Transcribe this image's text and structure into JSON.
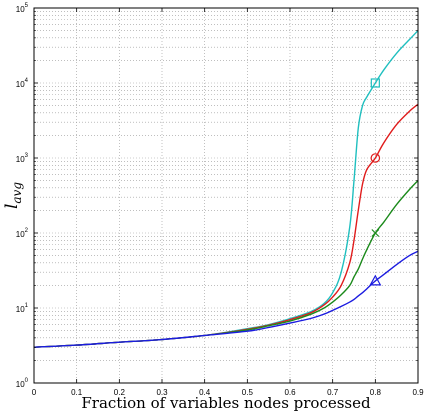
{
  "chart_data": {
    "type": "line",
    "title": "",
    "xlabel": "Fraction of variables nodes processed",
    "ylabel": "l",
    "ylabel_sub": "avg",
    "xlim": [
      0,
      0.9
    ],
    "ylim": [
      1,
      100000
    ],
    "yscale": "log",
    "grid": true,
    "xticks": [
      "0",
      "0.1",
      "0.2",
      "0.3",
      "0.4",
      "0.5",
      "0.6",
      "0.7",
      "0.8",
      "0.9"
    ],
    "ytick_base": "10",
    "ytick_exps": [
      "0",
      "1",
      "2",
      "3",
      "4",
      "5"
    ],
    "x": [
      0,
      0.1,
      0.2,
      0.3,
      0.4,
      0.5,
      0.55,
      0.6,
      0.65,
      0.68,
      0.7,
      0.72,
      0.74,
      0.75,
      0.76,
      0.77,
      0.78,
      0.8,
      0.82,
      0.85,
      0.88,
      0.9
    ],
    "series": [
      {
        "color": "#1fbfbf",
        "marker": "square",
        "marker_point": [
          0.8,
          10000
        ],
        "values": [
          3.0,
          3.2,
          3.5,
          3.8,
          4.3,
          5.3,
          6.0,
          7.2,
          9.0,
          11.5,
          16,
          30,
          120,
          500,
          2500,
          5000,
          6500,
          10000,
          15000,
          25000,
          38000,
          50000
        ]
      },
      {
        "color": "#e01b1b",
        "marker": "circle",
        "marker_point": [
          0.8,
          1000
        ],
        "values": [
          3.0,
          3.2,
          3.5,
          3.8,
          4.3,
          5.2,
          5.9,
          7.0,
          8.7,
          11,
          14,
          20,
          40,
          80,
          200,
          450,
          700,
          1000,
          1600,
          2800,
          4200,
          5200
        ]
      },
      {
        "color": "#1b8a1b",
        "marker": "x",
        "marker_point": [
          0.8,
          100
        ],
        "values": [
          3.0,
          3.2,
          3.5,
          3.8,
          4.3,
          5.1,
          5.8,
          6.7,
          8.3,
          10,
          12,
          15,
          20,
          26,
          33,
          45,
          60,
          100,
          140,
          240,
          380,
          500
        ]
      },
      {
        "color": "#1b1be0",
        "marker": "triangle",
        "marker_point": [
          0.8,
          23
        ],
        "values": [
          3.0,
          3.2,
          3.5,
          3.8,
          4.3,
          4.9,
          5.5,
          6.3,
          7.3,
          8.3,
          9.3,
          10.5,
          12,
          13,
          14.5,
          16,
          18,
          23,
          28,
          38,
          50,
          57
        ]
      }
    ]
  }
}
